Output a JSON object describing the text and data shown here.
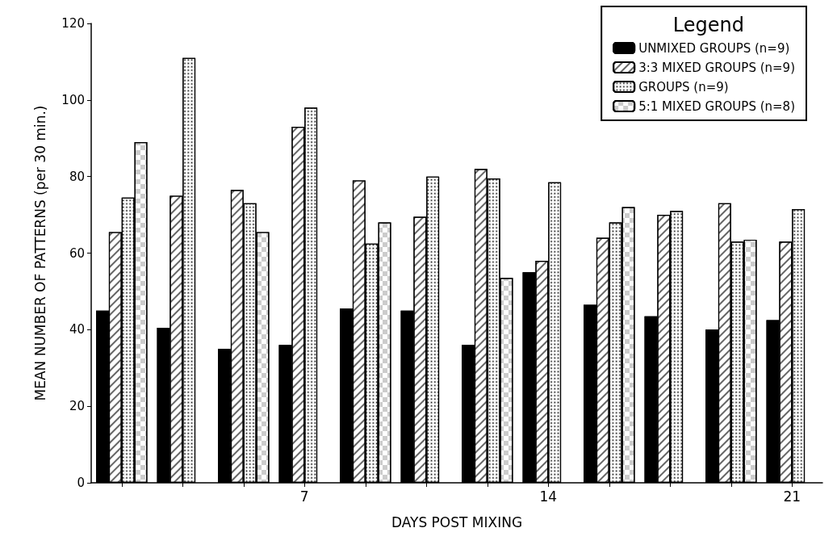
{
  "chart_data": {
    "type": "bar",
    "xlabel": "DAYS POST MIXING",
    "ylabel": "MEAN NUMBER OF PATTERNS (per 30 min.)",
    "legend_title": "Legend",
    "categories": [
      null,
      null,
      null,
      "7",
      null,
      null,
      null,
      "14",
      null,
      null,
      null,
      "21"
    ],
    "series": [
      {
        "name": "UNMIXED GROUPS (n=9)",
        "color": "#000000",
        "values": [
          45,
          40.5,
          35,
          36,
          45.5,
          45,
          36,
          55,
          46.5,
          43.5,
          40,
          42.5
        ]
      },
      {
        "name": "3:3 MIXED GROUPS (n=9)",
        "color": "#ffffff",
        "values": [
          65.5,
          75,
          76.5,
          93,
          79,
          69.5,
          82,
          58,
          64,
          70,
          73,
          63
        ]
      },
      {
        "name": "GROUPS (n=9)",
        "color": "#ffffff",
        "values": [
          74.5,
          111,
          73,
          98,
          62.5,
          80,
          79.5,
          78.5,
          68,
          71,
          63,
          71.5
        ]
      },
      {
        "name": "5:1 MIXED GROUPS (n=8)",
        "color": "#ffffff",
        "values": [
          89,
          null,
          65.5,
          null,
          68,
          null,
          53.5,
          null,
          72,
          null,
          63.5,
          null
        ]
      }
    ],
    "ylim": [
      0,
      120
    ],
    "yticks": [
      0,
      20,
      40,
      60,
      80,
      100,
      120
    ],
    "grid": false,
    "legend": "top right"
  }
}
